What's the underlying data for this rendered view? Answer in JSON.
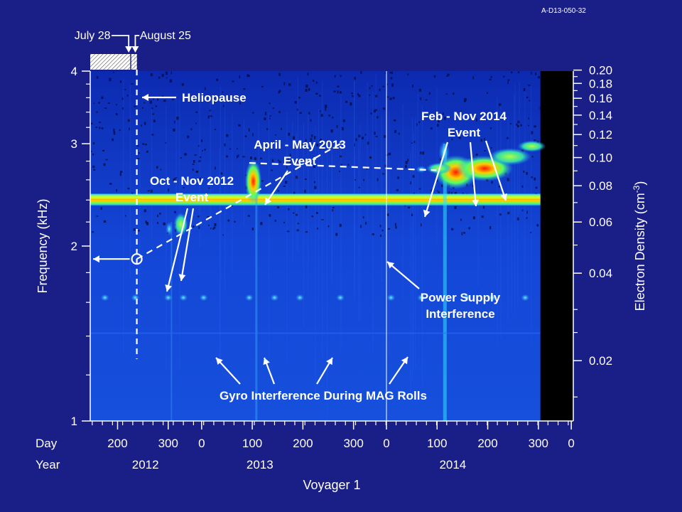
{
  "figure_id": "A-D13-050-32",
  "chart_data": {
    "type": "heatmap",
    "xlabel": "Voyager 1",
    "ylabel_left": "Frequency (kHz)",
    "ylabel_right": "Electron Density (cm",
    "ylabel_right_sup": "-3",
    "ylabel_right_close": ")",
    "y_scale": "log",
    "ylim_khz": [
      1,
      4
    ],
    "y_ticks_left": [
      {
        "v": 1,
        "label": "1"
      },
      {
        "v": 2,
        "label": "2"
      },
      {
        "v": 3,
        "label": "3"
      },
      {
        "v": 4,
        "label": "4"
      }
    ],
    "y_ticks_right": [
      {
        "n": 0.2,
        "label": "0.20"
      },
      {
        "n": 0.18,
        "label": "0.18"
      },
      {
        "n": 0.16,
        "label": "0.16"
      },
      {
        "n": 0.14,
        "label": "0.14"
      },
      {
        "n": 0.12,
        "label": "0.12"
      },
      {
        "n": 0.1,
        "label": "0.10"
      },
      {
        "n": 0.08,
        "label": "0.08"
      },
      {
        "n": 0.06,
        "label": "0.06"
      },
      {
        "n": 0.04,
        "label": "0.04"
      },
      {
        "n": 0.02,
        "label": "0.02"
      }
    ],
    "x_row_day_label": "Day",
    "x_row_year_label": "Year",
    "x_ticks": [
      {
        "t": 200,
        "label": "200"
      },
      {
        "t": 300,
        "label": "300"
      },
      {
        "t": 366,
        "label": "0"
      },
      {
        "t": 466,
        "label": "100"
      },
      {
        "t": 566,
        "label": "200"
      },
      {
        "t": 666,
        "label": "300"
      },
      {
        "t": 731,
        "label": "0"
      },
      {
        "t": 831,
        "label": "100"
      },
      {
        "t": 931,
        "label": "200"
      },
      {
        "t": 1031,
        "label": "300"
      },
      {
        "t": 1096,
        "label": "0"
      }
    ],
    "years": [
      {
        "t": 255,
        "label": "2012"
      },
      {
        "t": 481,
        "label": "2013"
      },
      {
        "t": 862,
        "label": "2014"
      }
    ],
    "xlim_days": [
      146,
      1100
    ],
    "no_data_after_day": 1035,
    "year_boundaries": [
      731
    ],
    "heliopause_day": 238,
    "trend_line": [
      {
        "t": 238,
        "f": 1.9
      },
      {
        "t": 640,
        "f": 3.0
      }
    ],
    "trend_line2": [
      {
        "t": 460,
        "f": 2.78
      },
      {
        "t": 830,
        "f": 2.7
      }
    ],
    "events": [
      {
        "name": "Oct - Nov 2012",
        "line1": "Oct - Nov 2012",
        "line2": "Event",
        "days": [
          298,
          328
        ],
        "freq_khz": [
          2.12,
          2.22
        ],
        "label_t": 290,
        "label_f": 2.95
      },
      {
        "name": "April - May 2013",
        "line1": "April - May 2013",
        "line2": "Event",
        "days": [
          460,
          476
        ],
        "freq_khz": [
          2.45,
          2.85
        ],
        "label_t": 510,
        "label_f": 3.42
      },
      {
        "name": "Feb - Nov 2014",
        "line1": "Feb - Nov 2014",
        "line2": "Event",
        "days": [
          810,
          1035
        ],
        "freq_khz": [
          2.6,
          3.0
        ],
        "label_t": 880,
        "label_f": 3.55
      }
    ],
    "interference_band_khz": [
      2.35,
      2.46
    ],
    "gyro_marks": [
      {
        "t": 175
      },
      {
        "t": 235
      },
      {
        "t": 300
      },
      {
        "t": 330
      },
      {
        "t": 370
      },
      {
        "t": 460
      },
      {
        "t": 510
      },
      {
        "t": 560
      },
      {
        "t": 640
      },
      {
        "t": 740
      },
      {
        "t": 800
      },
      {
        "t": 890
      },
      {
        "t": 940
      },
      {
        "t": 1005
      }
    ],
    "gyro_freq_khz": 1.63,
    "annotations": {
      "july": "July 28",
      "august": "August 25",
      "heliopause": "Heliopause",
      "power_supply_1": "Power Supply",
      "power_supply_2": "Interference",
      "gyro": "Gyro Interference During MAG Rolls"
    }
  }
}
